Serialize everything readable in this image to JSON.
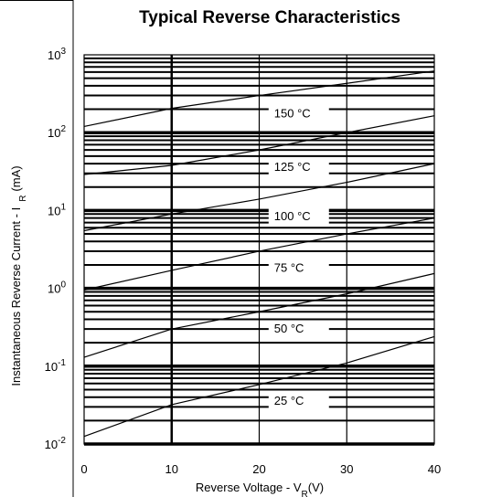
{
  "chart_data": {
    "type": "line",
    "title": "Typical Reverse Characteristics",
    "xlabel": "Reverse Voltage - V",
    "xlabel_sub": "R",
    "xlabel_unit": "(V)",
    "ylabel": "Instantaneous Reverse Current - I",
    "ylabel_sub": "R",
    "ylabel_unit": "(mA)",
    "xlim": [
      0,
      40
    ],
    "ylim": [
      0.01,
      1000
    ],
    "y_scale": "log",
    "grid": true,
    "x_ticks": [
      "0",
      "10",
      "20",
      "30",
      "40"
    ],
    "y_ticks": [
      {
        "base": "10",
        "exp": "-2"
      },
      {
        "base": "10",
        "exp": "-1"
      },
      {
        "base": "10",
        "exp": "0"
      },
      {
        "base": "10",
        "exp": "1"
      },
      {
        "base": "10",
        "exp": "2"
      },
      {
        "base": "10",
        "exp": "3"
      }
    ],
    "x": [
      0,
      10,
      20,
      30,
      40
    ],
    "series": [
      {
        "name": "150 °C",
        "values": [
          120,
          205,
          300,
          430,
          620
        ]
      },
      {
        "name": "125 °C",
        "values": [
          29,
          38,
          60,
          100,
          165
        ]
      },
      {
        "name": "100 °C",
        "values": [
          5.5,
          9,
          14,
          23,
          40
        ]
      },
      {
        "name": "75 °C",
        "values": [
          0.95,
          1.7,
          3,
          5,
          8
        ]
      },
      {
        "name": "50 °C",
        "values": [
          0.13,
          0.3,
          0.5,
          0.85,
          1.55
        ]
      },
      {
        "name": "25 °C",
        "values": [
          0.0125,
          0.032,
          0.058,
          0.11,
          0.24
        ]
      }
    ]
  }
}
